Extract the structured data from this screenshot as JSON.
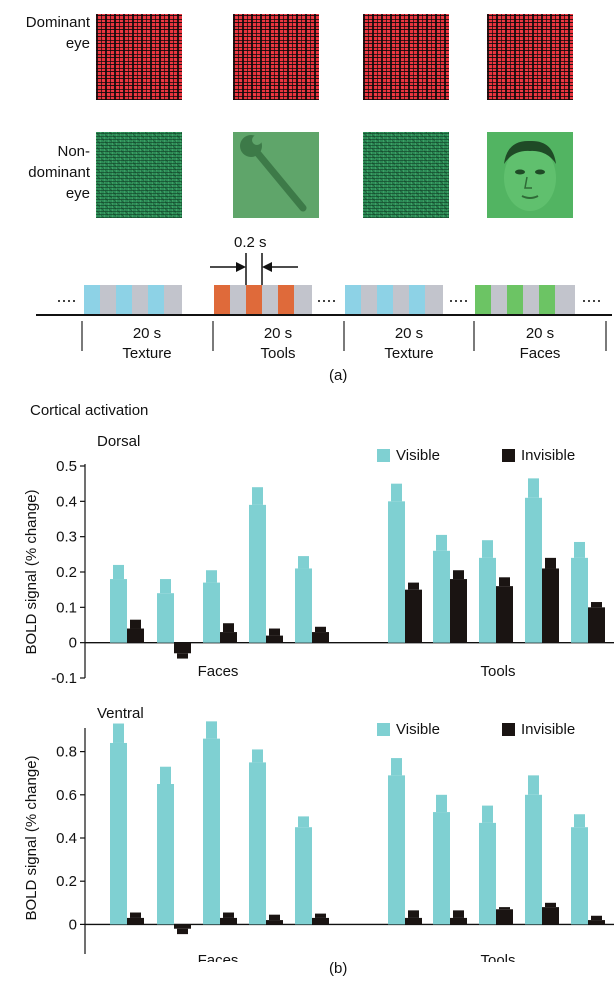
{
  "panel_a": {
    "dominant_label": "Dominant eye",
    "nondominant_label": "Non-dominant eye",
    "interval_label": "0.2 s",
    "blocks": [
      {
        "duration": "20 s",
        "type": "Texture"
      },
      {
        "duration": "20 s",
        "type": "Tools"
      },
      {
        "duration": "20 s",
        "type": "Texture"
      },
      {
        "duration": "20 s",
        "type": "Faces"
      }
    ],
    "caption": "(a)"
  },
  "panel_b": {
    "title": "Cortical activation",
    "caption": "(b)",
    "colors": {
      "visible": "#7fd0d2",
      "invisible": "#1a1412"
    }
  },
  "chart_data": [
    {
      "type": "bar",
      "title": "Dorsal",
      "ylabel": "BOLD signal (% change)",
      "ylim": [
        -0.1,
        0.5
      ],
      "yticks": [
        "-0.1",
        "0",
        "0.1",
        "0.2",
        "0.3",
        "0.4",
        "0.5"
      ],
      "groups": [
        "Faces",
        "Tools"
      ],
      "series": [
        {
          "name": "Visible",
          "values": [
            0.18,
            0.14,
            0.17,
            0.39,
            0.21,
            0.4,
            0.26,
            0.24,
            0.41,
            0.24
          ]
        },
        {
          "name": "Invisible",
          "values": [
            0.04,
            -0.03,
            0.03,
            0.02,
            0.03,
            0.15,
            0.18,
            0.16,
            0.21,
            0.1
          ]
        }
      ],
      "errors": {
        "Visible": [
          0.04,
          0.04,
          0.035,
          0.05,
          0.035,
          0.05,
          0.045,
          0.05,
          0.055,
          0.045
        ],
        "Invisible": [
          0.025,
          0.015,
          0.025,
          0.02,
          0.015,
          0.02,
          0.025,
          0.025,
          0.03,
          0.015
        ]
      }
    },
    {
      "type": "bar",
      "title": "Ventral",
      "ylabel": "BOLD signal (% change)",
      "ylim": [
        -0.1,
        0.9
      ],
      "yticks": [
        "0",
        "0.2",
        "0.4",
        "0.6",
        "0.8"
      ],
      "groups": [
        "Faces",
        "Tools"
      ],
      "series": [
        {
          "name": "Visible",
          "values": [
            0.84,
            0.65,
            0.86,
            0.75,
            0.45,
            0.69,
            0.52,
            0.47,
            0.6,
            0.45
          ]
        },
        {
          "name": "Invisible",
          "values": [
            0.03,
            -0.02,
            0.03,
            0.02,
            0.03,
            0.03,
            0.03,
            0.07,
            0.08,
            0.02
          ]
        }
      ],
      "errors": {
        "Visible": [
          0.09,
          0.08,
          0.08,
          0.06,
          0.05,
          0.08,
          0.08,
          0.08,
          0.09,
          0.06
        ],
        "Invisible": [
          0.025,
          0.025,
          0.025,
          0.025,
          0.02,
          0.035,
          0.035,
          0.01,
          0.02,
          0.02
        ]
      }
    }
  ]
}
